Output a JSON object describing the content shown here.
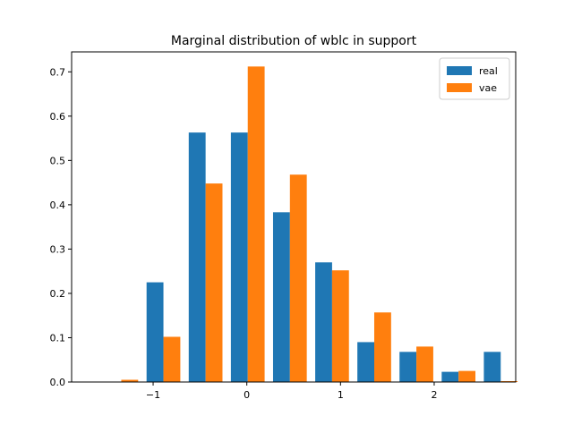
{
  "chart_data": {
    "type": "bar",
    "title": "Marginal distribution of wblc in support",
    "xlabel": "",
    "ylabel": "",
    "xlim": [
      -1.87,
      2.87
    ],
    "ylim": [
      0,
      0.745
    ],
    "x_ticks": [
      -1,
      0,
      1,
      2
    ],
    "x_tick_labels": [
      "−1",
      "0",
      "1",
      "2"
    ],
    "y_ticks": [
      0.0,
      0.1,
      0.2,
      0.3,
      0.4,
      0.5,
      0.6,
      0.7
    ],
    "y_tick_labels": [
      "0.0",
      "0.1",
      "0.2",
      "0.3",
      "0.4",
      "0.5",
      "0.6",
      "0.7"
    ],
    "bin_width_data": 0.45,
    "bar_width_data": 0.18,
    "grid": false,
    "legend": {
      "position": "top-right"
    },
    "series": [
      {
        "name": "real",
        "color": "#1f77b4",
        "x_left": [
          -1.52,
          -1.07,
          -0.62,
          -0.17,
          0.28,
          0.73,
          1.18,
          1.63,
          2.08,
          2.53
        ],
        "values": [
          0.0,
          0.225,
          0.563,
          0.563,
          0.383,
          0.27,
          0.09,
          0.068,
          0.023,
          0.068
        ]
      },
      {
        "name": "vae",
        "color": "#ff7f0e",
        "x_left": [
          -1.52,
          -1.07,
          -0.62,
          -0.17,
          0.28,
          0.73,
          1.18,
          1.63,
          2.08,
          2.53
        ],
        "values": [
          0.005,
          0.102,
          0.448,
          0.712,
          0.468,
          0.252,
          0.157,
          0.08,
          0.025,
          0.002
        ]
      }
    ]
  }
}
